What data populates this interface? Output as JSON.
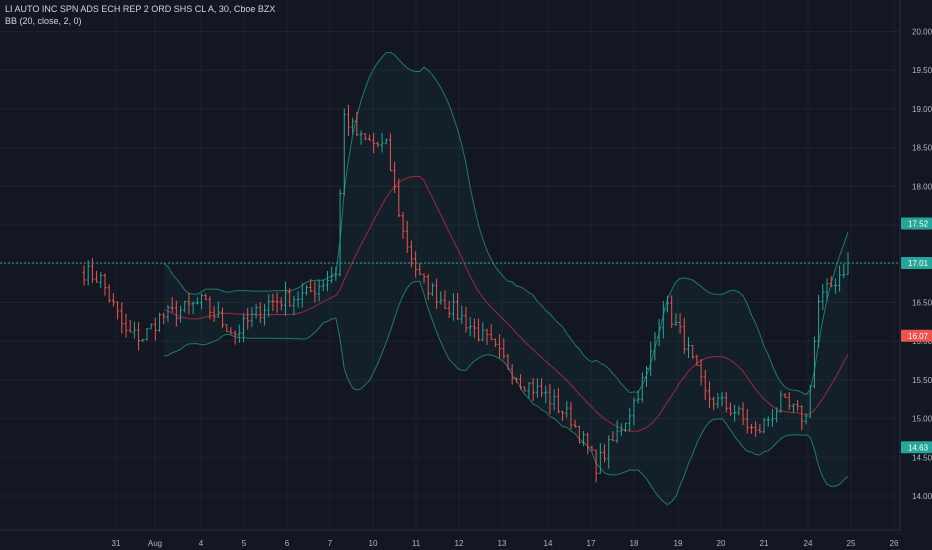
{
  "legend": {
    "symbol_line": "LI AUTO INC SPN ADS ECH REP 2 ORD SHS CL A, 30, Cboe BZX",
    "indicator_line": "BB (20, close, 2, 0)"
  },
  "colors": {
    "background": "#131722",
    "grid": "#1e222d",
    "up": "#26a69a",
    "down": "#ef5350",
    "band": "#1f7a6e",
    "basis": "#9c2a3a",
    "fill": "rgba(38,166,154,0.06)"
  },
  "chart_data": {
    "type": "bar",
    "y_ticks": [
      "14.00",
      "14.50",
      "15.00",
      "15.50",
      "16.00",
      "16.50",
      "17.00",
      "17.50",
      "18.00",
      "18.50",
      "19.00",
      "19.50",
      "20.00"
    ],
    "x_ticks": [
      "31",
      "Aug",
      "4",
      "5",
      "6",
      "7",
      "10",
      "11",
      "12",
      "13",
      "14",
      "17",
      "18",
      "19",
      "20",
      "21",
      "24",
      "25",
      "26"
    ],
    "ylim": [
      13.82,
      20.18
    ],
    "price_labels": [
      {
        "value": "17.52",
        "y": 17.52,
        "kind": "upper"
      },
      {
        "value": "17.01",
        "y": 17.01,
        "kind": "last"
      },
      {
        "value": "16.07",
        "y": 16.07,
        "kind": "basis"
      },
      {
        "value": "14.63",
        "y": 14.63,
        "kind": "lower"
      }
    ],
    "close_anchors": [
      {
        "i": 0,
        "v": 16.9
      },
      {
        "i": 4,
        "v": 16.8
      },
      {
        "i": 10,
        "v": 16.1
      },
      {
        "i": 14,
        "v": 16.05
      },
      {
        "i": 18,
        "v": 16.3
      },
      {
        "i": 28,
        "v": 16.5
      },
      {
        "i": 36,
        "v": 16.1
      },
      {
        "i": 44,
        "v": 16.5
      },
      {
        "i": 53,
        "v": 16.6
      },
      {
        "i": 60,
        "v": 16.9
      },
      {
        "i": 62,
        "v": 18.9
      },
      {
        "i": 66,
        "v": 18.6
      },
      {
        "i": 72,
        "v": 18.5
      },
      {
        "i": 76,
        "v": 17.4
      },
      {
        "i": 80,
        "v": 16.8
      },
      {
        "i": 88,
        "v": 16.4
      },
      {
        "i": 96,
        "v": 16.0
      },
      {
        "i": 104,
        "v": 15.5
      },
      {
        "i": 110,
        "v": 15.3
      },
      {
        "i": 116,
        "v": 15.0
      },
      {
        "i": 122,
        "v": 14.4
      },
      {
        "i": 126,
        "v": 14.7
      },
      {
        "i": 130,
        "v": 15.1
      },
      {
        "i": 134,
        "v": 15.6
      },
      {
        "i": 138,
        "v": 16.5
      },
      {
        "i": 143,
        "v": 16.0
      },
      {
        "i": 148,
        "v": 15.3
      },
      {
        "i": 155,
        "v": 15.1
      },
      {
        "i": 160,
        "v": 14.8
      },
      {
        "i": 166,
        "v": 15.2
      },
      {
        "i": 172,
        "v": 15.0
      },
      {
        "i": 175,
        "v": 16.5
      },
      {
        "i": 182,
        "v": 17.01
      }
    ]
  }
}
